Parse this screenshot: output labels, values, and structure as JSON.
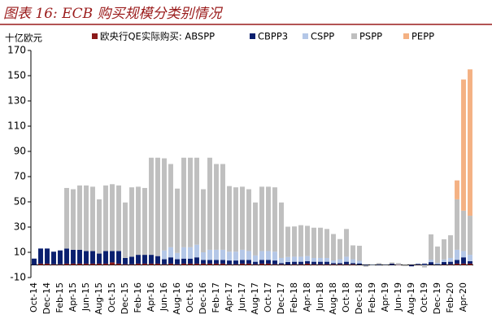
{
  "chart_data": {
    "type": "stacked-bar",
    "title": "图表 16: ECB 购买规模分类别情况",
    "y_label": "十亿欧元",
    "categories": [
      "Oct-14",
      null,
      "Dec-14",
      null,
      "Feb-15",
      null,
      "Apr-15",
      null,
      "Jun-15",
      null,
      "Aug-15",
      null,
      "Oct-15",
      null,
      "Dec-15",
      null,
      "Feb-16",
      null,
      "Apr-16",
      null,
      "Jun-16",
      null,
      "Aug-16",
      null,
      "Oct-16",
      null,
      "Dec-16",
      null,
      "Feb-17",
      null,
      "Apr-17",
      null,
      "Jun-17",
      null,
      "Aug-17",
      null,
      "Oct-17",
      null,
      "Dec-17",
      null,
      "Feb-18",
      null,
      "Apr-18",
      null,
      "Jun-18",
      null,
      "Aug-18",
      null,
      "Oct-18",
      null,
      "Dec-18",
      null,
      "Feb-19",
      null,
      "Apr-19",
      null,
      "Jun-19",
      null,
      "Aug-19",
      null,
      "Oct-19",
      null,
      "Dec-19",
      null,
      "Feb-20",
      null,
      "Apr-20",
      null
    ],
    "series": [
      {
        "name": "欧央行QE实际购买: ABSPP",
        "color": "#8b1a1a",
        "values": [
          0,
          1,
          1,
          0.5,
          0.5,
          1,
          1,
          1,
          1,
          1,
          1,
          1,
          2,
          1,
          0.5,
          0.5,
          1,
          1,
          1,
          1,
          0.5,
          1,
          0.5,
          1,
          1,
          1,
          1,
          1,
          1,
          1,
          0.5,
          0.5,
          1,
          1,
          0.5,
          1,
          1,
          0.5,
          0.5,
          0.3,
          0.5,
          0.5,
          1,
          0.5,
          0.5,
          0.5,
          0.5,
          0.5,
          0.5,
          0.5,
          0.2,
          0,
          0,
          0,
          0.1,
          0,
          -0.2,
          0,
          -0.1,
          0.2,
          0,
          0.2,
          0.1,
          0.3,
          0.5,
          1,
          1,
          1
        ]
      },
      {
        "name": "CBPP3",
        "color": "#0a1f6e",
        "values": [
          5,
          12,
          12,
          10,
          11,
          12,
          11,
          11,
          10,
          10,
          8,
          10,
          9,
          10,
          5,
          6,
          7,
          7,
          7,
          6,
          4,
          5,
          4,
          4,
          4,
          5,
          3,
          3,
          3,
          3,
          3,
          3,
          3,
          3,
          2,
          3,
          3,
          3,
          1,
          2,
          2,
          2,
          2,
          2,
          2,
          2,
          1,
          1,
          2,
          1,
          1,
          -0.5,
          0,
          0.5,
          0,
          1,
          0,
          0,
          -1,
          0.5,
          1,
          2,
          0.5,
          2,
          2,
          3,
          5,
          2
        ]
      },
      {
        "name": "CSPP",
        "color": "#b4c7e7",
        "values": [
          0,
          0,
          0,
          0,
          0,
          0,
          0,
          0,
          0,
          0,
          0,
          0,
          0,
          0,
          0,
          0,
          0,
          0,
          0,
          0,
          7,
          8,
          5,
          9,
          9,
          10,
          6,
          8,
          8,
          8,
          7,
          7,
          8,
          7,
          5,
          7,
          7,
          7,
          4,
          4,
          4,
          4,
          4,
          3,
          3,
          3,
          2,
          3,
          4,
          3,
          2,
          0,
          0.5,
          0,
          0.5,
          0,
          0.5,
          0,
          0,
          0.5,
          0,
          2,
          1,
          2,
          3,
          8,
          5,
          5
        ]
      },
      {
        "name": "PSPP",
        "color": "#bfbfbf",
        "values": [
          0,
          0,
          0,
          0,
          0,
          48,
          48,
          51,
          52,
          51,
          43,
          52,
          53,
          52,
          44,
          55,
          54,
          53,
          77,
          78,
          73,
          66,
          51,
          71,
          71,
          69,
          50,
          73,
          68,
          68,
          52,
          51,
          50,
          49,
          42,
          51,
          51,
          51,
          44,
          24,
          24,
          25,
          24,
          24,
          24,
          23,
          21,
          16,
          22,
          11,
          12,
          -1,
          0,
          1,
          0,
          1,
          1,
          -1,
          0,
          0,
          -2,
          20,
          13,
          16,
          18,
          40,
          32,
          31
        ]
      },
      {
        "name": "PEPP",
        "color": "#f4b183",
        "values": [
          0,
          0,
          0,
          0,
          0,
          0,
          0,
          0,
          0,
          0,
          0,
          0,
          0,
          0,
          0,
          0,
          0,
          0,
          0,
          0,
          0,
          0,
          0,
          0,
          0,
          0,
          0,
          0,
          0,
          0,
          0,
          0,
          0,
          0,
          0,
          0,
          0,
          0,
          0,
          0,
          0,
          0,
          0,
          0,
          0,
          0,
          0,
          0,
          0,
          0,
          0,
          0,
          0,
          0,
          0,
          0,
          0,
          0,
          0,
          0,
          0,
          0,
          0,
          0,
          0,
          15,
          104,
          116
        ]
      }
    ],
    "ylim": [
      -10,
      170
    ],
    "yticks": [
      -10,
      10,
      30,
      50,
      70,
      90,
      110,
      130,
      150,
      170
    ],
    "grid": false
  }
}
